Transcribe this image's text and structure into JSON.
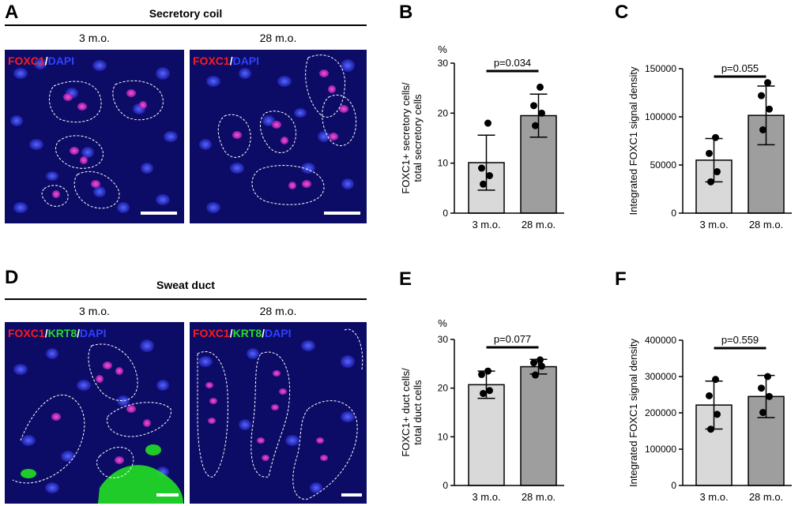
{
  "panels": {
    "A": "A",
    "B": "B",
    "C": "C",
    "D": "D",
    "E": "E",
    "F": "F"
  },
  "top_section": {
    "title": "Secretory coil",
    "left_age": "3 m.o.",
    "right_age": "28 m.o.",
    "stain_left": {
      "red": "FOXC1",
      "sep": "/",
      "blue": "DAPI"
    },
    "stain_right": {
      "red": "FOXC1",
      "sep": "/",
      "blue": "DAPI"
    }
  },
  "bottom_section": {
    "title": "Sweat duct",
    "left_age": "3 m.o.",
    "right_age": "28 m.o.",
    "stain_left": {
      "red": "FOXC1",
      "sep1": "/",
      "green": "KRT8",
      "sep2": "/",
      "blue": "DAPI"
    },
    "stain_right": {
      "red": "FOXC1",
      "sep1": "/",
      "green": "KRT8",
      "sep2": "/",
      "blue": "DAPI"
    }
  },
  "colors": {
    "bar_3mo": "#d9d9d9",
    "bar_28mo": "#9e9e9e",
    "foxc1": "#ff1a1a",
    "krt8": "#22e022",
    "dapi": "#2a2ad0"
  },
  "chart_data": [
    {
      "id": "B",
      "type": "bar",
      "categories": [
        "3 m.o.",
        "28 m.o."
      ],
      "values": [
        10.1,
        19.5
      ],
      "sd": [
        5.5,
        4.3
      ],
      "points": [
        [
          18.0,
          9.0,
          7.5,
          5.8
        ],
        [
          25.2,
          21.5,
          20.0,
          17.5
        ]
      ],
      "ylabel": [
        "FOXC1+ secretory cells/",
        "total secretory cells"
      ],
      "unit": "%",
      "ylim": [
        0,
        30
      ],
      "ticks": [
        0,
        10,
        20,
        30
      ],
      "tick_labels": [
        "0",
        "10",
        "20",
        "30"
      ],
      "pvalue": "p=0.034"
    },
    {
      "id": "C",
      "type": "bar",
      "categories": [
        "3 m.o.",
        "28 m.o."
      ],
      "values": [
        55000,
        101500
      ],
      "sd": [
        22500,
        30500
      ],
      "points": [
        [
          78500,
          62000,
          43000,
          32500
        ],
        [
          135500,
          122000,
          108000,
          86500
        ]
      ],
      "ylabel": [
        "Integrated FOXC1 signal density"
      ],
      "unit": "",
      "ylim": [
        0,
        150000
      ],
      "ticks": [
        0,
        50000,
        100000,
        150000
      ],
      "tick_labels": [
        "0",
        "50000",
        "100000",
        "150000"
      ],
      "pvalue": "p=0.055"
    },
    {
      "id": "E",
      "type": "bar",
      "categories": [
        "3 m.o.",
        "28 m.o."
      ],
      "values": [
        20.7,
        24.4
      ],
      "sd": [
        2.8,
        1.5
      ],
      "points": [
        [
          23.5,
          22.8,
          19.5,
          18.9
        ],
        [
          25.8,
          25.2,
          24.5,
          22.7
        ]
      ],
      "ylabel": [
        "FOXC1+ duct cells/",
        "total duct cells"
      ],
      "unit": "%",
      "ylim": [
        0,
        30
      ],
      "ticks": [
        0,
        10,
        20,
        30
      ],
      "tick_labels": [
        "0",
        "10",
        "20",
        "30"
      ],
      "pvalue": "p=0.077"
    },
    {
      "id": "F",
      "type": "bar",
      "categories": [
        "3 m.o.",
        "28 m.o."
      ],
      "values": [
        221500,
        245000
      ],
      "sd": [
        66000,
        58000
      ],
      "points": [
        [
          292000,
          247000,
          196000,
          155000
        ],
        [
          300000,
          268000,
          245000,
          201000
        ]
      ],
      "ylabel": [
        "Integrated FOXC1 signal density"
      ],
      "unit": "",
      "ylim": [
        0,
        400000
      ],
      "ticks": [
        0,
        100000,
        200000,
        300000,
        400000
      ],
      "tick_labels": [
        "0",
        "100000",
        "200000",
        "300000",
        "400000"
      ],
      "pvalue": "p=0.559"
    }
  ]
}
